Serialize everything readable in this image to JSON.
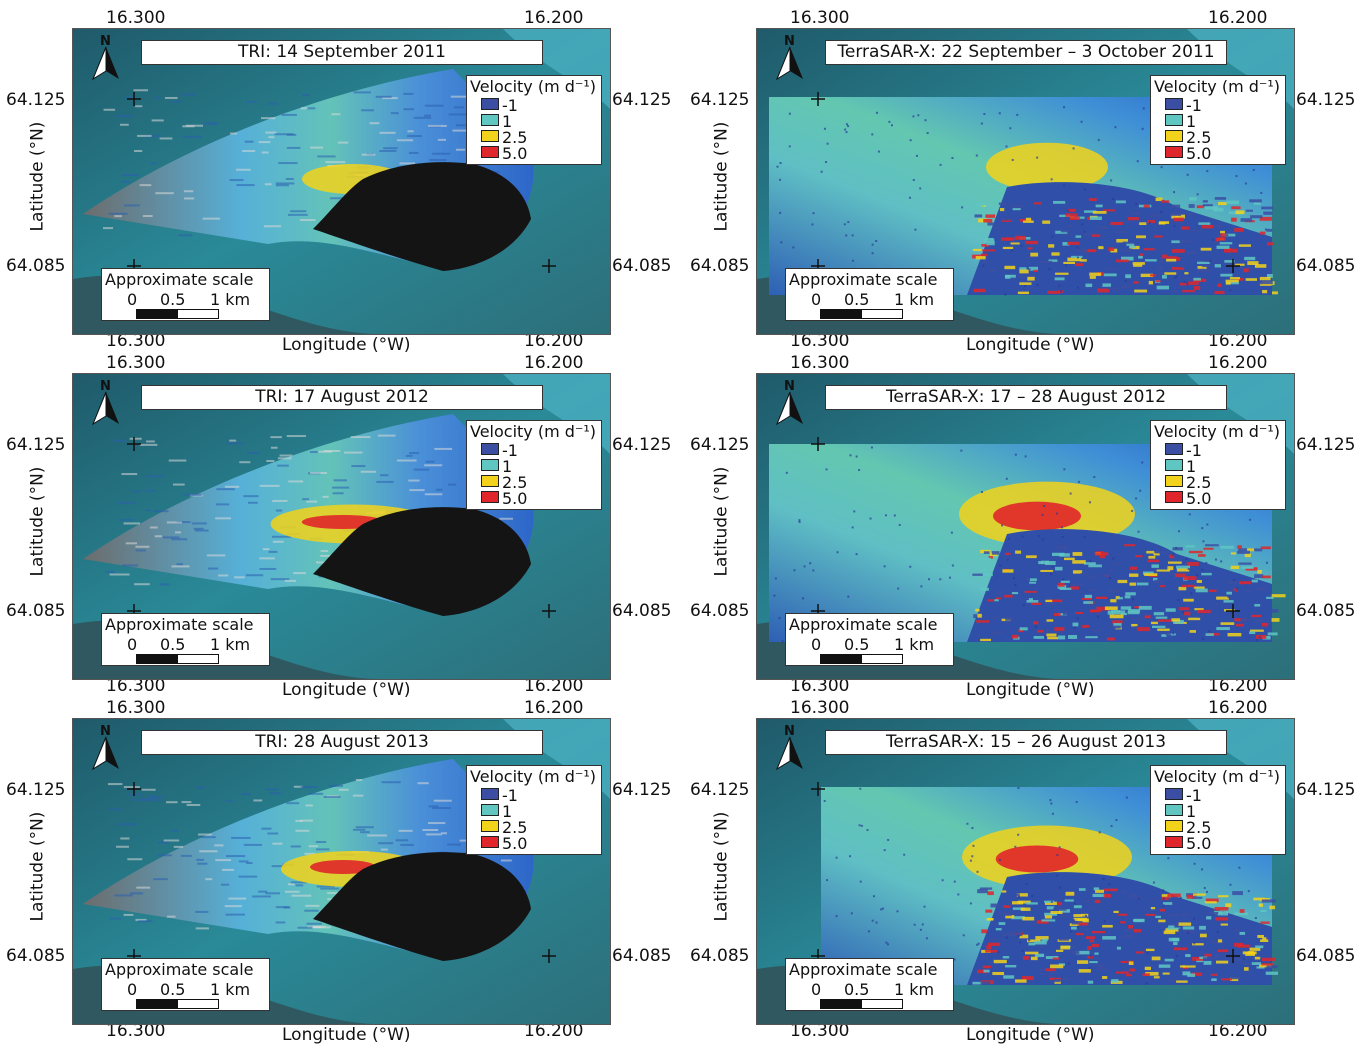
{
  "common": {
    "legend_title": "Velocity (m d⁻¹)",
    "legend_items": [
      {
        "label": "-1",
        "color": "#3a4fa3"
      },
      {
        "label": "1",
        "color": "#5fc6c2"
      },
      {
        "label": "2.5",
        "color": "#f2d21a"
      },
      {
        "label": "5.0",
        "color": "#e0262a"
      }
    ],
    "scale_title": "Approximate scale",
    "scale_labels": [
      "0",
      "0.5",
      "1 km"
    ],
    "north_label": "N",
    "x_ticks": [
      "16.300",
      "16.200"
    ],
    "y_ticks": [
      "64.125",
      "64.085"
    ],
    "xlabel": "Longitude (°W)",
    "ylabel": "Latitude (°N)"
  },
  "panels": [
    {
      "title": "TRI: 14 September 2011",
      "type": "tri",
      "warm_level": 0.3
    },
    {
      "title": "TerraSAR-X: 22 September – 3 October 2011",
      "type": "tsx",
      "warm_level": 0.35
    },
    {
      "title": "TRI: 17 August 2012",
      "type": "tri",
      "warm_level": 0.75
    },
    {
      "title": "TerraSAR-X: 17 – 28 August 2012",
      "type": "tsx",
      "warm_level": 0.8
    },
    {
      "title": "TRI: 28 August 2013",
      "type": "tri",
      "warm_level": 0.6
    },
    {
      "title": "TerraSAR-X: 15 – 26 August 2013",
      "type": "tsx",
      "warm_level": 0.75
    }
  ]
}
